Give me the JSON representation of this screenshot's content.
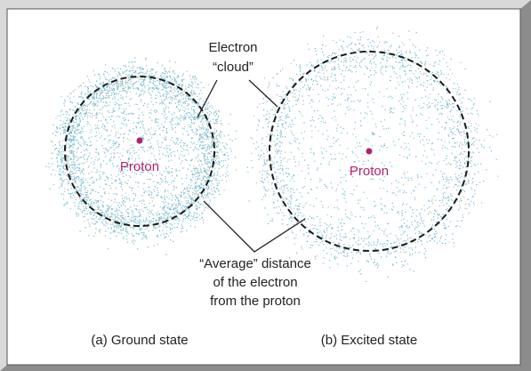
{
  "callouts": {
    "cloud": [
      "Electron",
      "“cloud”"
    ],
    "distance": [
      "“Average” distance",
      "of the electron",
      "from the proton"
    ]
  },
  "states": [
    {
      "caption": "(a) Ground state",
      "nucleus": "Proton"
    },
    {
      "caption": "(b) Excited state",
      "nucleus": "Proton"
    }
  ]
}
